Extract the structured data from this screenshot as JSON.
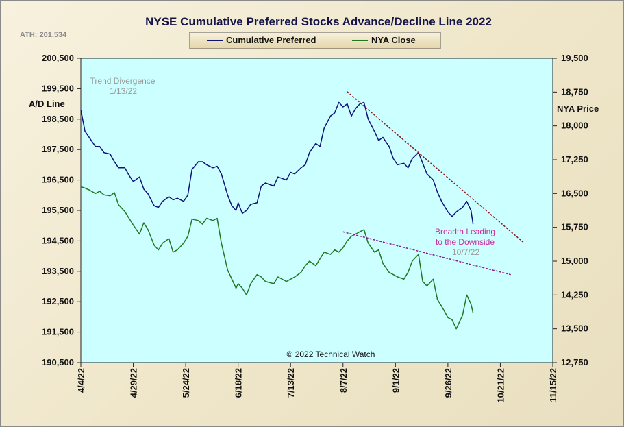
{
  "chart_data": {
    "type": "line",
    "title": "NYSE Cumulative  Preferred Stocks Advance/Decline  Line 2022",
    "ath_label": "ATH: 201,534",
    "copyright": "© 2022 Technical Watch",
    "left_axis": {
      "label": "A/D Line",
      "range": [
        190500,
        200500
      ],
      "ticks": [
        "200,500",
        "199,500",
        "198,500",
        "197,500",
        "196,500",
        "195,500",
        "194,500",
        "193,500",
        "192,500",
        "191,500",
        "190,500"
      ]
    },
    "right_axis": {
      "label": "NYA Price",
      "range": [
        12750,
        19500
      ],
      "ticks": [
        "19,500",
        "18,750",
        "18,000",
        "17,250",
        "16,500",
        "15,750",
        "15,000",
        "14,250",
        "13,500",
        "12,750"
      ]
    },
    "x_axis": {
      "range": [
        "2022-04-04",
        "2022-11-15"
      ],
      "ticks": [
        "4/4/22",
        "4/29/22",
        "5/24/22",
        "6/18/22",
        "7/13/22",
        "8/7/22",
        "9/1/22",
        "9/26/22",
        "10/21/22",
        "11/15/22"
      ]
    },
    "grid": false,
    "legend_position": "top-center",
    "series": [
      {
        "name": "Cumulative Preferred",
        "axis": "left",
        "color": "#10107a",
        "points": [
          [
            "2022-04-04",
            198800
          ],
          [
            "2022-04-06",
            198100
          ],
          [
            "2022-04-08",
            197900
          ],
          [
            "2022-04-11",
            197600
          ],
          [
            "2022-04-13",
            197600
          ],
          [
            "2022-04-15",
            197400
          ],
          [
            "2022-04-18",
            197350
          ],
          [
            "2022-04-20",
            197100
          ],
          [
            "2022-04-22",
            196900
          ],
          [
            "2022-04-25",
            196900
          ],
          [
            "2022-04-27",
            196650
          ],
          [
            "2022-04-29",
            196450
          ],
          [
            "2022-05-02",
            196600
          ],
          [
            "2022-05-04",
            196200
          ],
          [
            "2022-05-06",
            196050
          ],
          [
            "2022-05-09",
            195650
          ],
          [
            "2022-05-11",
            195600
          ],
          [
            "2022-05-13",
            195800
          ],
          [
            "2022-05-16",
            195950
          ],
          [
            "2022-05-18",
            195850
          ],
          [
            "2022-05-20",
            195900
          ],
          [
            "2022-05-23",
            195800
          ],
          [
            "2022-05-25",
            196000
          ],
          [
            "2022-05-27",
            196850
          ],
          [
            "2022-05-30",
            197100
          ],
          [
            "2022-06-01",
            197100
          ],
          [
            "2022-06-03",
            197000
          ],
          [
            "2022-06-06",
            196900
          ],
          [
            "2022-06-08",
            196950
          ],
          [
            "2022-06-10",
            196700
          ],
          [
            "2022-06-13",
            196000
          ],
          [
            "2022-06-15",
            195650
          ],
          [
            "2022-06-17",
            195500
          ],
          [
            "2022-06-18",
            195750
          ],
          [
            "2022-06-20",
            195400
          ],
          [
            "2022-06-22",
            195500
          ],
          [
            "2022-06-24",
            195700
          ],
          [
            "2022-06-27",
            195750
          ],
          [
            "2022-06-29",
            196300
          ],
          [
            "2022-07-01",
            196400
          ],
          [
            "2022-07-05",
            196300
          ],
          [
            "2022-07-07",
            196600
          ],
          [
            "2022-07-11",
            196500
          ],
          [
            "2022-07-13",
            196750
          ],
          [
            "2022-07-15",
            196700
          ],
          [
            "2022-07-18",
            196900
          ],
          [
            "2022-07-20",
            197000
          ],
          [
            "2022-07-22",
            197400
          ],
          [
            "2022-07-25",
            197700
          ],
          [
            "2022-07-27",
            197600
          ],
          [
            "2022-07-29",
            198200
          ],
          [
            "2022-08-01",
            198600
          ],
          [
            "2022-08-03",
            198700
          ],
          [
            "2022-08-05",
            199050
          ],
          [
            "2022-08-07",
            198900
          ],
          [
            "2022-08-09",
            199000
          ],
          [
            "2022-08-11",
            198600
          ],
          [
            "2022-08-13",
            198850
          ],
          [
            "2022-08-15",
            199000
          ],
          [
            "2022-08-17",
            199050
          ],
          [
            "2022-08-19",
            198500
          ],
          [
            "2022-08-22",
            198100
          ],
          [
            "2022-08-24",
            197800
          ],
          [
            "2022-08-26",
            197900
          ],
          [
            "2022-08-29",
            197600
          ],
          [
            "2022-08-31",
            197200
          ],
          [
            "2022-09-02",
            197000
          ],
          [
            "2022-09-05",
            197050
          ],
          [
            "2022-09-07",
            196900
          ],
          [
            "2022-09-09",
            197200
          ],
          [
            "2022-09-12",
            197400
          ],
          [
            "2022-09-14",
            197050
          ],
          [
            "2022-09-16",
            196700
          ],
          [
            "2022-09-19",
            196500
          ],
          [
            "2022-09-21",
            196100
          ],
          [
            "2022-09-23",
            195800
          ],
          [
            "2022-09-26",
            195450
          ],
          [
            "2022-09-28",
            195300
          ],
          [
            "2022-09-30",
            195450
          ],
          [
            "2022-10-03",
            195600
          ],
          [
            "2022-10-05",
            195800
          ],
          [
            "2022-10-07",
            195500
          ],
          [
            "2022-10-08",
            195050
          ]
        ]
      },
      {
        "name": "NYA Close",
        "axis": "right",
        "color": "#1f7a1f",
        "points": [
          [
            "2022-04-04",
            16650
          ],
          [
            "2022-04-06",
            16620
          ],
          [
            "2022-04-08",
            16580
          ],
          [
            "2022-04-11",
            16500
          ],
          [
            "2022-04-13",
            16550
          ],
          [
            "2022-04-15",
            16470
          ],
          [
            "2022-04-18",
            16450
          ],
          [
            "2022-04-20",
            16520
          ],
          [
            "2022-04-22",
            16250
          ],
          [
            "2022-04-25",
            16100
          ],
          [
            "2022-04-27",
            15950
          ],
          [
            "2022-04-29",
            15800
          ],
          [
            "2022-05-02",
            15600
          ],
          [
            "2022-05-04",
            15850
          ],
          [
            "2022-05-06",
            15700
          ],
          [
            "2022-05-09",
            15350
          ],
          [
            "2022-05-11",
            15250
          ],
          [
            "2022-05-13",
            15400
          ],
          [
            "2022-05-16",
            15500
          ],
          [
            "2022-05-18",
            15200
          ],
          [
            "2022-05-20",
            15250
          ],
          [
            "2022-05-23",
            15400
          ],
          [
            "2022-05-25",
            15550
          ],
          [
            "2022-05-27",
            15930
          ],
          [
            "2022-05-30",
            15900
          ],
          [
            "2022-06-01",
            15820
          ],
          [
            "2022-06-03",
            15950
          ],
          [
            "2022-06-06",
            15900
          ],
          [
            "2022-06-08",
            15950
          ],
          [
            "2022-06-10",
            15400
          ],
          [
            "2022-06-13",
            14800
          ],
          [
            "2022-06-15",
            14600
          ],
          [
            "2022-06-17",
            14400
          ],
          [
            "2022-06-18",
            14500
          ],
          [
            "2022-06-20",
            14400
          ],
          [
            "2022-06-22",
            14250
          ],
          [
            "2022-06-24",
            14500
          ],
          [
            "2022-06-27",
            14700
          ],
          [
            "2022-06-29",
            14650
          ],
          [
            "2022-07-01",
            14550
          ],
          [
            "2022-07-05",
            14500
          ],
          [
            "2022-07-07",
            14650
          ],
          [
            "2022-07-11",
            14550
          ],
          [
            "2022-07-13",
            14600
          ],
          [
            "2022-07-15",
            14650
          ],
          [
            "2022-07-18",
            14750
          ],
          [
            "2022-07-20",
            14900
          ],
          [
            "2022-07-22",
            15000
          ],
          [
            "2022-07-25",
            14900
          ],
          [
            "2022-07-27",
            15050
          ],
          [
            "2022-07-29",
            15200
          ],
          [
            "2022-08-01",
            15150
          ],
          [
            "2022-08-03",
            15250
          ],
          [
            "2022-08-05",
            15200
          ],
          [
            "2022-08-07",
            15300
          ],
          [
            "2022-08-09",
            15450
          ],
          [
            "2022-08-11",
            15550
          ],
          [
            "2022-08-13",
            15600
          ],
          [
            "2022-08-15",
            15650
          ],
          [
            "2022-08-17",
            15700
          ],
          [
            "2022-08-19",
            15400
          ],
          [
            "2022-08-22",
            15200
          ],
          [
            "2022-08-24",
            15250
          ],
          [
            "2022-08-26",
            14950
          ],
          [
            "2022-08-29",
            14750
          ],
          [
            "2022-08-31",
            14700
          ],
          [
            "2022-09-02",
            14650
          ],
          [
            "2022-09-05",
            14600
          ],
          [
            "2022-09-07",
            14750
          ],
          [
            "2022-09-09",
            15000
          ],
          [
            "2022-09-12",
            15150
          ],
          [
            "2022-09-14",
            14550
          ],
          [
            "2022-09-16",
            14450
          ],
          [
            "2022-09-19",
            14600
          ],
          [
            "2022-09-21",
            14150
          ],
          [
            "2022-09-23",
            14000
          ],
          [
            "2022-09-26",
            13750
          ],
          [
            "2022-09-28",
            13700
          ],
          [
            "2022-09-30",
            13500
          ],
          [
            "2022-10-03",
            13800
          ],
          [
            "2022-10-05",
            14250
          ],
          [
            "2022-10-07",
            14050
          ],
          [
            "2022-10-08",
            13850
          ]
        ]
      }
    ],
    "annotations": [
      {
        "text": "Trend  Divergence",
        "color": "#9a9a9a"
      },
      {
        "text": "1/13/22",
        "color": "#9a9a9a"
      },
      {
        "text": "Breadth Leading",
        "color": "#cc2aa0"
      },
      {
        "text": "to the Downside",
        "color": "#cc2aa0"
      },
      {
        "text": "10/7/22",
        "color": "#9a9a9a"
      }
    ],
    "trendlines": [
      {
        "axis": "left",
        "color": "#8b1a1a",
        "from": [
          "2022-08-09",
          199400
        ],
        "to": [
          "2022-11-01",
          194450
        ]
      },
      {
        "axis": "right",
        "color": "#8b1a8b",
        "from": [
          "2022-08-07",
          15650
        ],
        "to": [
          "2022-10-26",
          14700
        ]
      }
    ],
    "colors": {
      "plot_bg": "#ccffff",
      "frame_bg": "#f3ecd5"
    }
  }
}
